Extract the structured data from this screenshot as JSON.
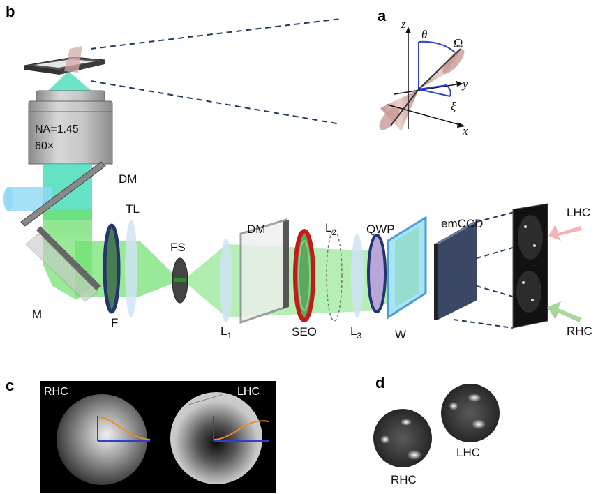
{
  "panels": {
    "a": "a",
    "b": "b",
    "c": "c",
    "d": "d"
  },
  "objective": {
    "na": "NA=1.45",
    "mag": "60×"
  },
  "labels": {
    "dm_top": "DM",
    "tl": "TL",
    "fs": "FS",
    "dm_mid": "DM",
    "l2": "L",
    "l2_sub": "2",
    "qwp": "QWP",
    "emccd": "emCCD",
    "lhc_arrow": "LHC",
    "rhc_arrow": "RHC",
    "m": "M",
    "f": "F",
    "l1": "L",
    "l1_sub": "1",
    "seo": "SEO",
    "l3": "L",
    "l3_sub": "3",
    "w": "W"
  },
  "axes": {
    "z": "z",
    "y": "y",
    "x": "x",
    "theta": "θ",
    "omega": "Ω",
    "xi": "ξ"
  },
  "panel_c": {
    "left": "RHC",
    "right": "LHC"
  },
  "panel_d": {
    "lhc": "LHC",
    "rhc": "RHC"
  },
  "colors": {
    "laser": "#6ee06e",
    "fluor": "#3fd9b6",
    "excite": "#8fd8f5",
    "cone": "#c98e8e",
    "seo": "#c41a1a",
    "lhc_arrow": "#f5b3b3",
    "rhc_arrow": "#a9d49a",
    "ccd": "#4a5a78",
    "dash": "#1f3a64",
    "curve": "#f08a1c"
  }
}
